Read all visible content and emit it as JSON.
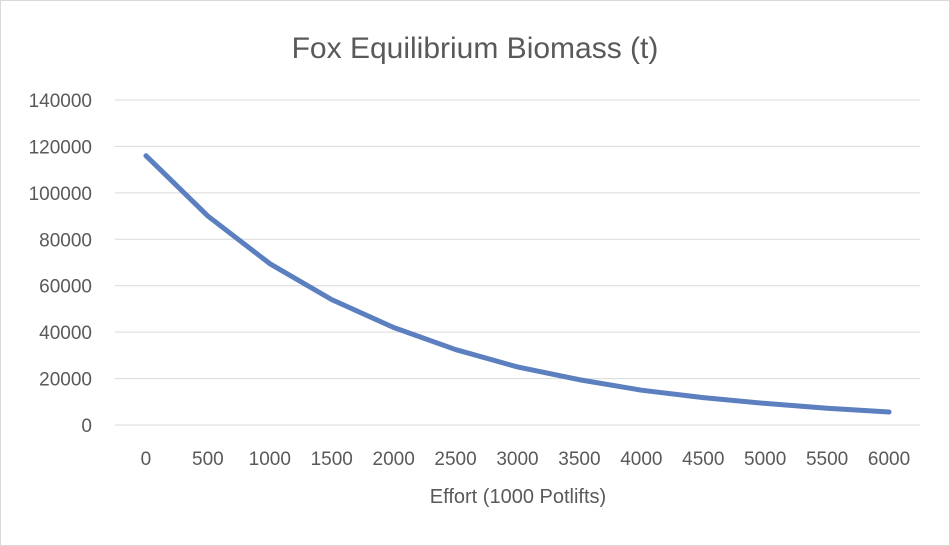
{
  "chart_data": {
    "type": "line",
    "title": "Fox Equilibrium Biomass (t)",
    "xlabel": "Effort (1000 Potlifts)",
    "ylabel": "",
    "ylim": [
      0,
      140000
    ],
    "yticks": [
      "0",
      "20000",
      "40000",
      "60000",
      "80000",
      "100000",
      "120000",
      "140000"
    ],
    "categories": [
      "0",
      "500",
      "1000",
      "1500",
      "2000",
      "2500",
      "3000",
      "3500",
      "4000",
      "4500",
      "5000",
      "5500",
      "6000"
    ],
    "series": [
      {
        "values": [
          116000,
          90000,
          69500,
          54000,
          42000,
          32500,
          25000,
          19500,
          15000,
          11800,
          9300,
          7200,
          5600
        ],
        "color": "#5b7fbf"
      }
    ],
    "grid": true,
    "legend": "none"
  }
}
